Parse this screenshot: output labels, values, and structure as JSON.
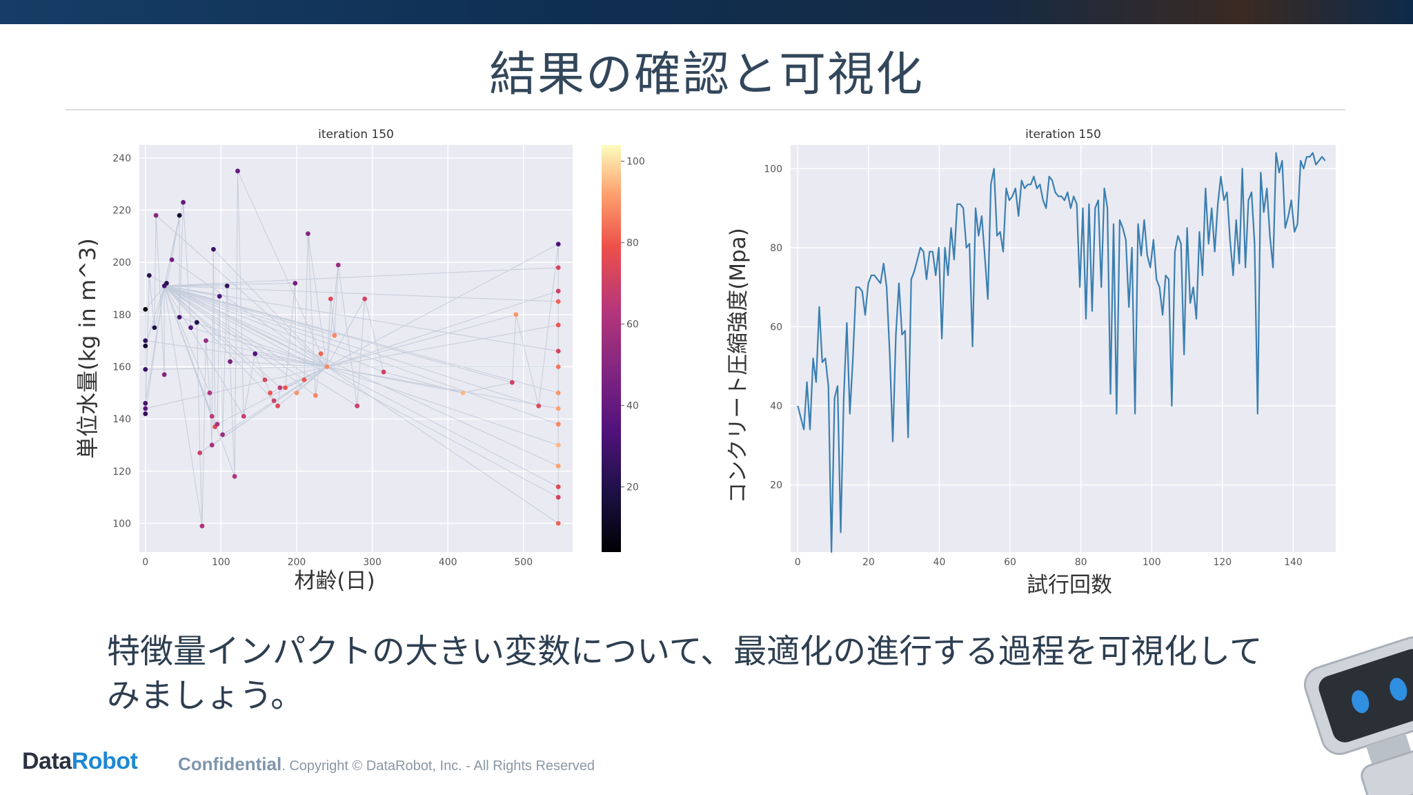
{
  "slide": {
    "title": "結果の確認と可視化",
    "caption": "特徴量インパクトの大きい変数について、最適化の進行する過程を可視化してみましょう。",
    "footer": {
      "logo_a": "Data",
      "logo_b": "Robot",
      "confidential": "Confidential",
      "copyright": ". Copyright © DataRobot, Inc. - All Rights Reserved"
    }
  },
  "colors": {
    "plot_bg": "#eaeaf2",
    "line": "#3a7fb0",
    "text": "#2d3e50"
  },
  "chart_data": [
    {
      "type": "scatter",
      "title": "iteration 150",
      "xlabel": "材齢(日)",
      "ylabel": "単位水量(kg in m^3)",
      "xlim": [
        -8,
        565
      ],
      "ylim": [
        89,
        245
      ],
      "xticks": [
        0,
        100,
        200,
        300,
        400,
        500
      ],
      "yticks": [
        100,
        120,
        140,
        160,
        180,
        200,
        220,
        240
      ],
      "colorbar": {
        "colormap": "magma",
        "range": [
          4,
          104
        ],
        "ticks": [
          20,
          40,
          60,
          80,
          100
        ]
      },
      "points": [
        {
          "x": 0,
          "y": 182,
          "c": 5
        },
        {
          "x": 0,
          "y": 170,
          "c": 25
        },
        {
          "x": 0,
          "y": 168,
          "c": 15
        },
        {
          "x": 0,
          "y": 159,
          "c": 28
        },
        {
          "x": 0,
          "y": 146,
          "c": 30
        },
        {
          "x": 0,
          "y": 144,
          "c": 35
        },
        {
          "x": 0,
          "y": 142,
          "c": 25
        },
        {
          "x": 5,
          "y": 195,
          "c": 22
        },
        {
          "x": 12,
          "y": 175,
          "c": 18
        },
        {
          "x": 14,
          "y": 218,
          "c": 50
        },
        {
          "x": 25,
          "y": 157,
          "c": 48
        },
        {
          "x": 25,
          "y": 191,
          "c": 30
        },
        {
          "x": 28,
          "y": 192,
          "c": 22
        },
        {
          "x": 35,
          "y": 201,
          "c": 45
        },
        {
          "x": 45,
          "y": 218,
          "c": 15
        },
        {
          "x": 45,
          "y": 179,
          "c": 30
        },
        {
          "x": 50,
          "y": 223,
          "c": 40
        },
        {
          "x": 60,
          "y": 175,
          "c": 35
        },
        {
          "x": 68,
          "y": 177,
          "c": 20
        },
        {
          "x": 72,
          "y": 127,
          "c": 70
        },
        {
          "x": 75,
          "y": 99,
          "c": 62
        },
        {
          "x": 80,
          "y": 170,
          "c": 55
        },
        {
          "x": 85,
          "y": 150,
          "c": 62
        },
        {
          "x": 88,
          "y": 130,
          "c": 60
        },
        {
          "x": 88,
          "y": 141,
          "c": 65
        },
        {
          "x": 90,
          "y": 205,
          "c": 28
        },
        {
          "x": 92,
          "y": 137,
          "c": 75
        },
        {
          "x": 95,
          "y": 138,
          "c": 60
        },
        {
          "x": 98,
          "y": 187,
          "c": 32
        },
        {
          "x": 102,
          "y": 134,
          "c": 55
        },
        {
          "x": 108,
          "y": 191,
          "c": 25
        },
        {
          "x": 112,
          "y": 162,
          "c": 45
        },
        {
          "x": 118,
          "y": 118,
          "c": 62
        },
        {
          "x": 122,
          "y": 235,
          "c": 40
        },
        {
          "x": 130,
          "y": 141,
          "c": 68
        },
        {
          "x": 145,
          "y": 165,
          "c": 35
        },
        {
          "x": 158,
          "y": 155,
          "c": 72
        },
        {
          "x": 165,
          "y": 150,
          "c": 80
        },
        {
          "x": 170,
          "y": 147,
          "c": 70
        },
        {
          "x": 175,
          "y": 145,
          "c": 75
        },
        {
          "x": 178,
          "y": 152,
          "c": 65
        },
        {
          "x": 185,
          "y": 152,
          "c": 80
        },
        {
          "x": 198,
          "y": 192,
          "c": 45
        },
        {
          "x": 200,
          "y": 150,
          "c": 90
        },
        {
          "x": 210,
          "y": 155,
          "c": 80
        },
        {
          "x": 215,
          "y": 211,
          "c": 50
        },
        {
          "x": 225,
          "y": 149,
          "c": 88
        },
        {
          "x": 232,
          "y": 165,
          "c": 82
        },
        {
          "x": 240,
          "y": 160,
          "c": 88
        },
        {
          "x": 245,
          "y": 186,
          "c": 75
        },
        {
          "x": 250,
          "y": 172,
          "c": 88
        },
        {
          "x": 255,
          "y": 199,
          "c": 55
        },
        {
          "x": 280,
          "y": 145,
          "c": 70
        },
        {
          "x": 290,
          "y": 186,
          "c": 72
        },
        {
          "x": 315,
          "y": 158,
          "c": 70
        },
        {
          "x": 420,
          "y": 150,
          "c": 95
        },
        {
          "x": 485,
          "y": 154,
          "c": 70
        },
        {
          "x": 490,
          "y": 180,
          "c": 90
        },
        {
          "x": 520,
          "y": 145,
          "c": 75
        },
        {
          "x": 546,
          "y": 207,
          "c": 32
        },
        {
          "x": 546,
          "y": 198,
          "c": 72
        },
        {
          "x": 546,
          "y": 189,
          "c": 70
        },
        {
          "x": 546,
          "y": 185,
          "c": 82
        },
        {
          "x": 546,
          "y": 176,
          "c": 80
        },
        {
          "x": 546,
          "y": 166,
          "c": 72
        },
        {
          "x": 546,
          "y": 160,
          "c": 85
        },
        {
          "x": 546,
          "y": 150,
          "c": 90
        },
        {
          "x": 546,
          "y": 144,
          "c": 92
        },
        {
          "x": 546,
          "y": 138,
          "c": 88
        },
        {
          "x": 546,
          "y": 130,
          "c": 95
        },
        {
          "x": 546,
          "y": 122,
          "c": 92
        },
        {
          "x": 546,
          "y": 114,
          "c": 75
        },
        {
          "x": 546,
          "y": 110,
          "c": 72
        },
        {
          "x": 546,
          "y": 100,
          "c": 82
        }
      ]
    },
    {
      "type": "line",
      "title": "iteration 150",
      "xlabel": "試行回数",
      "ylabel": "コンクリート圧縮強度(Mpa)",
      "xlim": [
        -2,
        152
      ],
      "ylim": [
        3,
        106
      ],
      "xticks": [
        0,
        20,
        40,
        60,
        80,
        100,
        120,
        140
      ],
      "yticks": [
        20,
        40,
        60,
        80,
        100
      ],
      "series": [
        {
          "values": [
            40,
            37,
            34,
            46,
            34,
            52,
            46,
            65,
            51,
            52,
            45,
            3,
            42,
            45,
            8,
            42,
            61,
            38,
            52,
            70,
            70,
            69,
            63,
            71,
            73,
            73,
            72,
            71,
            76,
            70,
            53,
            31,
            58,
            71,
            58,
            59,
            32,
            72,
            74,
            77,
            80,
            79,
            72,
            79,
            79,
            73,
            80,
            57,
            80,
            73,
            85,
            77,
            91,
            91,
            90,
            80,
            81,
            55,
            90,
            83,
            88,
            78,
            67,
            96,
            100,
            83,
            84,
            79,
            95,
            92,
            93,
            95,
            88,
            97,
            95,
            96,
            96,
            98,
            95,
            96,
            92,
            90,
            98,
            97,
            94,
            93,
            93,
            92,
            94,
            90,
            93,
            91,
            70,
            90,
            62,
            91,
            64,
            90,
            92,
            70,
            95,
            90,
            43,
            86,
            38,
            87,
            85,
            82,
            65,
            80,
            38,
            86,
            78,
            87,
            78,
            75,
            82,
            72,
            70,
            63,
            73,
            72,
            40,
            79,
            83,
            81,
            53,
            85,
            66,
            70,
            62,
            84,
            73,
            95,
            81,
            90,
            79,
            91,
            98,
            92,
            94,
            82,
            73,
            87,
            76,
            100,
            75,
            92,
            94,
            81,
            38,
            99,
            89,
            95,
            83,
            75,
            104,
            99,
            102,
            85,
            88,
            92,
            84,
            86,
            102,
            100,
            103,
            103,
            104,
            101,
            102,
            103,
            102
          ]
        }
      ]
    }
  ]
}
